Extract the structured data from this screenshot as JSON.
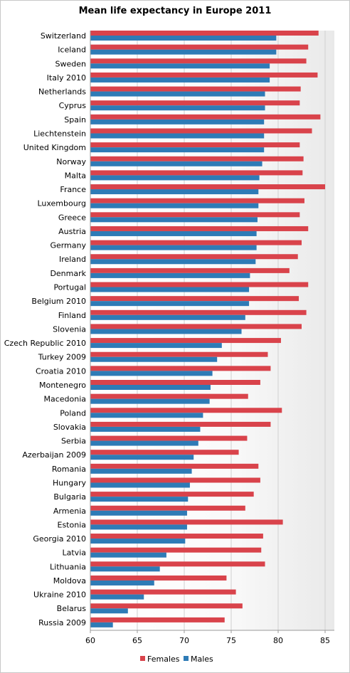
{
  "chart_data": {
    "type": "bar",
    "orientation": "horizontal",
    "title": "Mean life expectancy in Europe 2011",
    "xlabel": "",
    "ylabel": "",
    "xlim": [
      60,
      86
    ],
    "xticks": [
      60,
      65,
      70,
      75,
      80,
      85
    ],
    "grid": "vertical",
    "legend_position": "bottom",
    "categories": [
      "Switzerland",
      "Iceland",
      "Sweden",
      "Italy 2010",
      "Netherlands",
      "Cyprus",
      "Spain",
      "Liechtenstein",
      "United Kingdom",
      "Norway",
      "Malta",
      "France",
      "Luxembourg",
      "Greece",
      "Austria",
      "Germany",
      "Ireland",
      "Denmark",
      "Portugal",
      "Belgium 2010",
      "Finland",
      "Slovenia",
      "Czech Republic 2010",
      "Turkey 2009",
      "Croatia 2010",
      "Montenegro",
      "Macedonia",
      "Poland",
      "Slovakia",
      "Serbia",
      "Azerbaijan 2009",
      "Romania",
      "Hungary",
      "Bulgaria",
      "Armenia",
      "Estonia",
      "Georgia 2010",
      "Latvia",
      "Lithuania",
      "Moldova",
      "Ukraine 2010",
      "Belarus",
      "Russia 2009"
    ],
    "series": [
      {
        "name": "Females",
        "color": "#d9434b",
        "values": [
          84.3,
          83.2,
          83.0,
          84.2,
          82.4,
          82.3,
          84.5,
          83.6,
          82.3,
          82.7,
          82.6,
          85.0,
          82.8,
          82.3,
          83.2,
          82.5,
          82.1,
          81.2,
          83.2,
          82.2,
          83.0,
          82.5,
          80.3,
          78.9,
          79.2,
          78.1,
          76.8,
          80.4,
          79.2,
          76.7,
          75.8,
          77.9,
          78.1,
          77.4,
          76.5,
          80.5,
          78.4,
          78.2,
          78.6,
          74.5,
          75.5,
          76.2,
          74.3
        ]
      },
      {
        "name": "Males",
        "color": "#2e7bb6",
        "values": [
          79.8,
          79.8,
          79.1,
          79.1,
          78.6,
          78.6,
          78.5,
          78.5,
          78.5,
          78.3,
          78.0,
          77.9,
          77.9,
          77.8,
          77.7,
          77.7,
          77.6,
          77.0,
          76.9,
          76.9,
          76.5,
          76.1,
          74.0,
          73.5,
          73.0,
          72.8,
          72.7,
          72.0,
          71.7,
          71.5,
          71.0,
          70.8,
          70.6,
          70.4,
          70.3,
          70.3,
          70.1,
          68.1,
          67.4,
          66.8,
          65.7,
          64.0,
          62.4
        ]
      }
    ]
  }
}
